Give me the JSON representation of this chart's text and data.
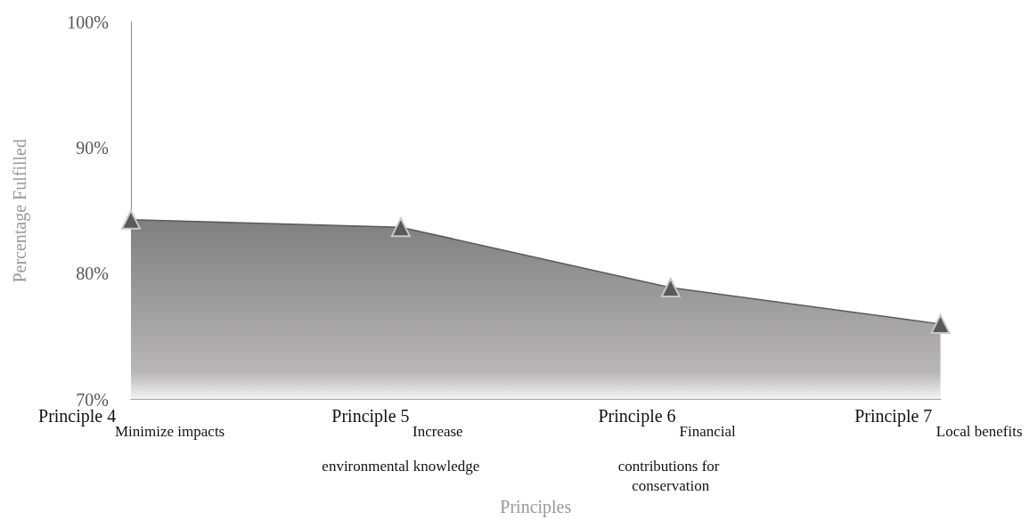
{
  "chart_data": {
    "type": "area",
    "xlabel": "Principles",
    "ylabel": "Percentage Fulfilled",
    "categories": [
      "Principle 4\nMinimize impacts",
      "Principle 5\nIncrease environmental knowledge",
      "Principle 6\nFinancial contributions for conservation",
      "Principle 7\nLocal benefits"
    ],
    "series": [
      {
        "color": "#7f7f7f",
        "values": [
          84.3,
          83.7,
          78.9,
          76.0
        ]
      }
    ],
    "ylim": [
      70,
      100
    ],
    "yticks": [
      {
        "value": 70,
        "label": "70%"
      },
      {
        "value": 80,
        "label": "80%"
      },
      {
        "value": 90,
        "label": "90%"
      },
      {
        "value": 100,
        "label": "100%"
      }
    ],
    "grid": false,
    "marker": "triangle"
  }
}
